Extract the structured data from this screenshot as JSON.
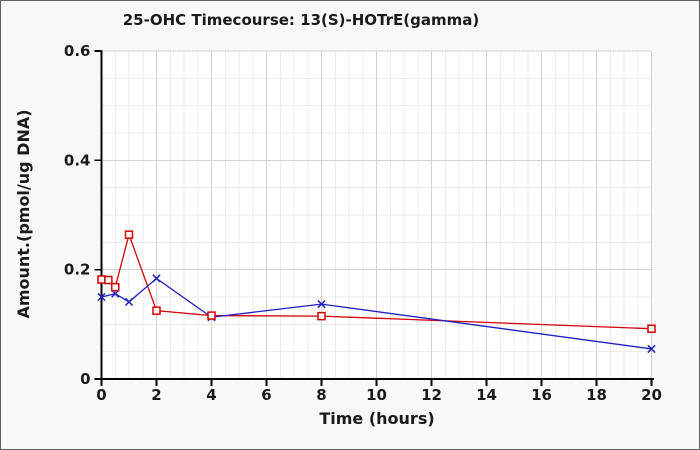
{
  "chart_data": {
    "type": "line",
    "title": "25-OHC Timecourse: 13(S)-HOTrE(gamma)",
    "xlabel": "Time (hours)",
    "ylabel": "Amount.(pmol/ug DNA)",
    "xlim": [
      0,
      20
    ],
    "ylim": [
      0,
      0.6
    ],
    "x_major_ticks": [
      0,
      2,
      4,
      6,
      8,
      10,
      12,
      14,
      16,
      18,
      20
    ],
    "y_major_ticks": [
      0,
      0.2,
      0.4,
      0.6
    ],
    "x_minor_step": 0.5,
    "y_minor_step": 0.05,
    "grid": "major and minor gridlines on",
    "legend": "none",
    "series": [
      {
        "name": "red-open-square-series",
        "marker": "square",
        "color": "#d40000",
        "x": [
          0,
          0.25,
          0.5,
          1,
          2,
          4,
          8,
          20
        ],
        "y": [
          0.182,
          0.181,
          0.168,
          0.264,
          0.125,
          0.116,
          0.115,
          0.092
        ]
      },
      {
        "name": "blue-x-series",
        "marker": "x",
        "color": "#2020c0",
        "x": [
          0,
          0.5,
          1,
          2,
          4,
          8,
          20
        ],
        "y": [
          0.15,
          0.156,
          0.141,
          0.184,
          0.113,
          0.137,
          0.055
        ]
      }
    ],
    "colors": {
      "plot_background": "#ffffff",
      "outer_background": "#f8f8f8",
      "grid_minor": "#ebebeb",
      "grid_major": "#d2d2d2",
      "axis": "#000000",
      "text": "#1a1a1a",
      "window_border": "#5f5f5f"
    }
  }
}
